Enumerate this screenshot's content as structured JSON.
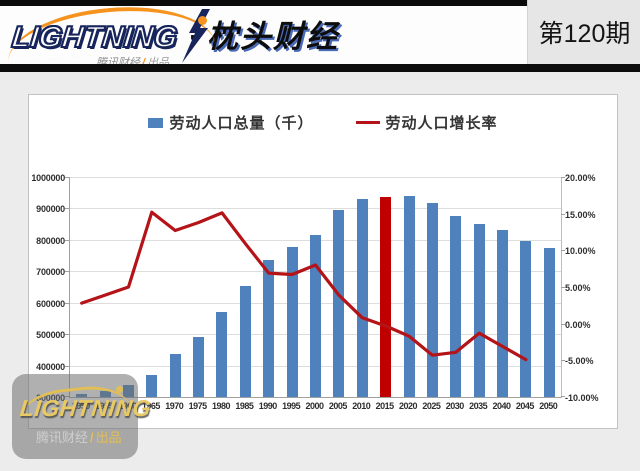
{
  "header": {
    "logo_text": "LIGHTNING",
    "logo_separator": "·",
    "logo_cn": "枕头财经",
    "logo_sub_left": "腾讯财经",
    "logo_sub_right": "出品",
    "issue_label": "第120期"
  },
  "watermark": {
    "logo_text": "LIGHTNING",
    "sub_left": "腾讯财经",
    "sub_right": "出品"
  },
  "colors": {
    "bar_blue": "#4f81bd",
    "bar_highlight_red": "#c00000",
    "line_red": "#b41318",
    "accent_orange": "#f6921e",
    "watermark_gold": "#e2bf55"
  },
  "chart_data": {
    "type": "bar+line combo",
    "legend_position": "top",
    "grid": true,
    "categories": [
      "1950",
      "1955",
      "1960",
      "1965",
      "1970",
      "1975",
      "1980",
      "1985",
      "1990",
      "1995",
      "2000",
      "2005",
      "2010",
      "2015",
      "2020",
      "2025",
      "2030",
      "2035",
      "2040",
      "2045",
      "2050"
    ],
    "series": [
      {
        "name": "劳动人口总量（千）",
        "type": "bar",
        "axis": "left",
        "color": "#4f81bd",
        "highlight_index": 13,
        "highlight_color": "#c00000",
        "values": [
          310000,
          320000,
          337000,
          370000,
          438000,
          490000,
          572000,
          652000,
          736000,
          776000,
          814000,
          894000,
          931000,
          937000,
          939000,
          918000,
          875000,
          849000,
          833000,
          795000,
          774000
        ]
      },
      {
        "name": "劳动人口增长率",
        "type": "line",
        "axis": "right",
        "color": "#b41318",
        "values": [
          2.8,
          3.9,
          5.0,
          15.2,
          12.7,
          13.8,
          15.1,
          10.9,
          6.9,
          6.7,
          8.0,
          3.9,
          0.8,
          -0.3,
          -1.7,
          -4.3,
          -3.9,
          -1.3,
          -3.1,
          -4.9,
          null
        ]
      }
    ],
    "left_axis": {
      "min": 300000,
      "max": 1000000,
      "step": 100000,
      "tick_labels": [
        "1000000",
        "900000",
        "800000",
        "700000",
        "600000",
        "500000",
        "400000",
        "300000"
      ]
    },
    "right_axis": {
      "min": -10,
      "max": 20,
      "step": 5,
      "tick_labels": [
        "20.00%",
        "15.00%",
        "10.00%",
        "5.00%",
        "0.00%",
        "-5.00%",
        "-10.00%"
      ]
    }
  }
}
